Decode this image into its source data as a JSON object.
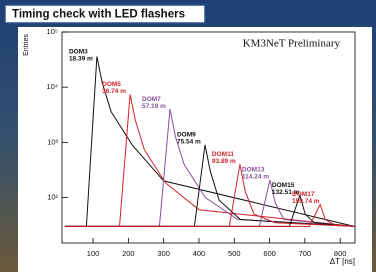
{
  "header": {
    "title": "Timing check with LED flashers"
  },
  "chart_data": {
    "type": "line",
    "annotation": "KM3NeT Preliminary",
    "x_label": "ΔT [ns]",
    "y_label": "Entries",
    "log_y": true,
    "xlim": [
      12,
      842
    ],
    "xticks": [
      100,
      200,
      300,
      400,
      500,
      600,
      700,
      800
    ],
    "ylim": [
      15,
      100000
    ],
    "yticks": [
      {
        "value": 100,
        "label": "10²"
      },
      {
        "value": 1000,
        "label": "10³"
      },
      {
        "value": 10000,
        "label": "10⁴"
      },
      {
        "value": 100000,
        "label": "10⁵"
      }
    ],
    "series": [
      {
        "name": "DOM3",
        "distance": "18.39 m",
        "color": "#111111",
        "x": [
          20,
          81,
          111,
          126,
          151,
          211,
          300,
          840
        ],
        "values": [
          30,
          30,
          36000,
          12000,
          3600,
          900,
          200,
          30
        ]
      },
      {
        "name": "DOM5",
        "distance": "36.74 m",
        "color": "#d2232a",
        "x": [
          20,
          175,
          205,
          220,
          245,
          305,
          400,
          840
        ],
        "values": [
          30,
          30,
          7400,
          2500,
          740,
          185,
          60,
          30
        ]
      },
      {
        "name": "DOM7",
        "distance": "57.19 m",
        "color": "#8a4f9e",
        "x": [
          20,
          288,
          318,
          333,
          358,
          418,
          510,
          840
        ],
        "values": [
          30,
          30,
          4000,
          1300,
          400,
          100,
          40,
          30
        ]
      },
      {
        "name": "DOM9",
        "distance": "75.54 m",
        "color": "#111111",
        "x": [
          20,
          387,
          417,
          432,
          457,
          517,
          840
        ],
        "values": [
          30,
          30,
          900,
          300,
          90,
          40,
          30
        ]
      },
      {
        "name": "DOM11",
        "distance": "93.89 m",
        "color": "#d2232a",
        "x": [
          20,
          486,
          516,
          531,
          556,
          616,
          840
        ],
        "values": [
          30,
          30,
          400,
          130,
          50,
          35,
          30
        ]
      },
      {
        "name": "DOM13",
        "distance": "114.24 m",
        "color": "#8a4f9e",
        "x": [
          20,
          571,
          601,
          616,
          641,
          840
        ],
        "values": [
          30,
          30,
          210,
          80,
          40,
          30
        ]
      },
      {
        "name": "DOM15",
        "distance": "132.51 m",
        "color": "#111111",
        "x": [
          20,
          656,
          686,
          701,
          726,
          840
        ],
        "values": [
          30,
          30,
          110,
          50,
          35,
          30
        ]
      },
      {
        "name": "DOM17",
        "distance": "150.74 m",
        "color": "#d2232a",
        "x": [
          20,
          713,
          743,
          758,
          783,
          840
        ],
        "values": [
          30,
          30,
          75,
          40,
          32,
          30
        ]
      }
    ]
  }
}
